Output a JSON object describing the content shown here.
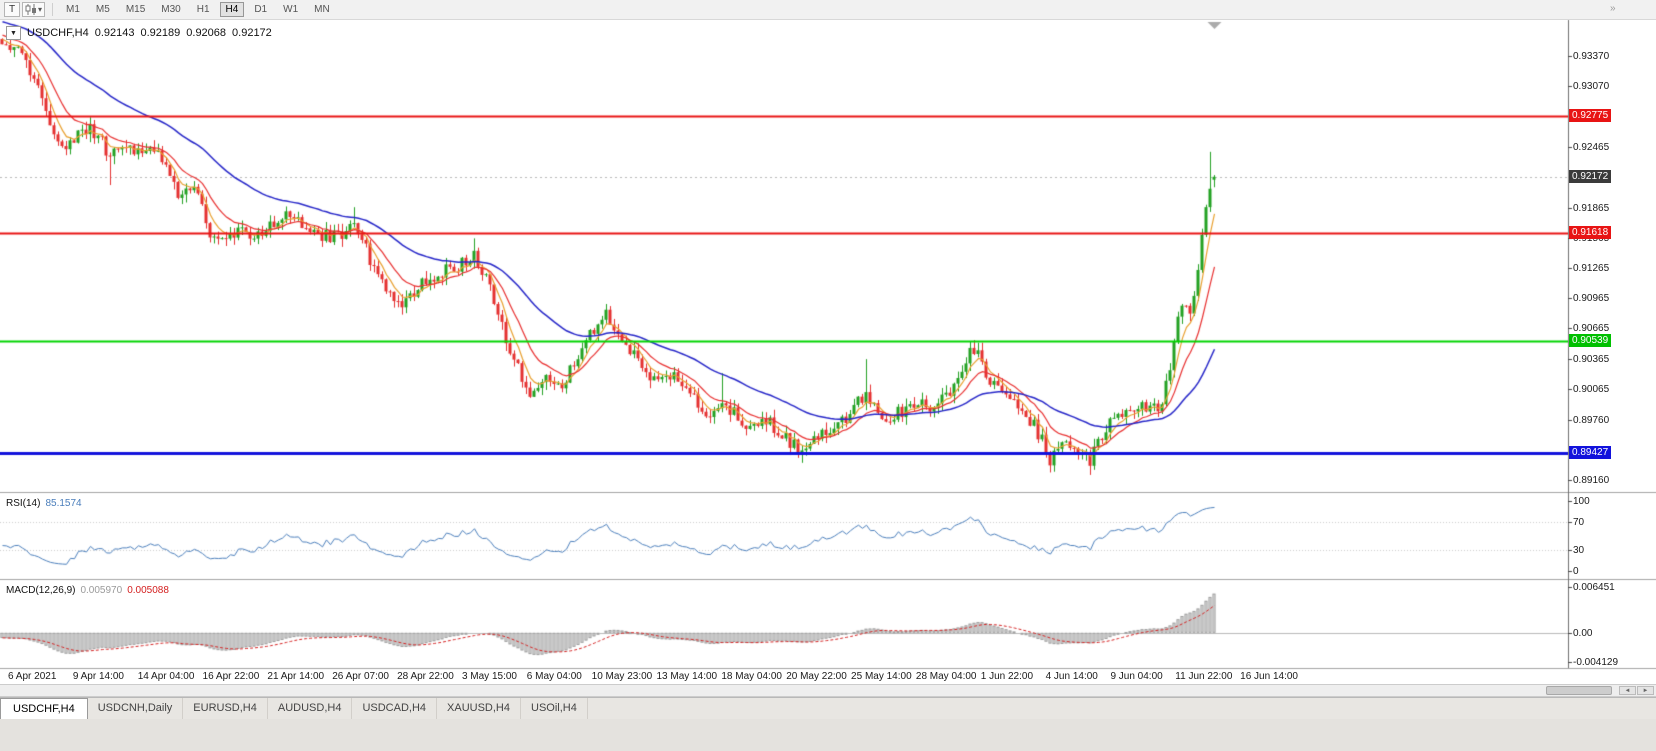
{
  "toolbar": {
    "templates_label": "T",
    "dropdown_caret": "▾",
    "overflow_icon": "»",
    "timeframes": [
      "M1",
      "M5",
      "M15",
      "M30",
      "H1",
      "H4",
      "D1",
      "W1",
      "MN"
    ],
    "active_timeframe": "H4"
  },
  "header": {
    "dropdown_glyph": "▼",
    "symbol": "USDCHF,H4",
    "open": "0.92143",
    "high": "0.92189",
    "low": "0.92068",
    "close": "0.92172"
  },
  "chart_data": {
    "type": "candlestick",
    "symbol": "USDCHF",
    "timeframe": "H4",
    "price_axis": {
      "max": 0.9373,
      "min": 0.8904,
      "ticks": [
        "0.93370",
        "0.93070",
        "0.92465",
        "0.91865",
        "0.91565",
        "0.91265",
        "0.90965",
        "0.90665",
        "0.90365",
        "0.90065",
        "0.89760",
        "0.89160"
      ],
      "badges": [
        {
          "text": "0.92775",
          "bg": "#e81414"
        },
        {
          "text": "0.92172",
          "bg": "#3b3b3b"
        },
        {
          "text": "0.91618",
          "bg": "#e81414"
        },
        {
          "text": "0.90539",
          "bg": "#00c000"
        },
        {
          "text": "0.89427",
          "bg": "#1212dc"
        }
      ]
    },
    "current_price": 0.92172,
    "h_lines": [
      {
        "price": 0.92775,
        "color": "#e81414",
        "width": 2
      },
      {
        "price": 0.91618,
        "color": "#e81414",
        "width": 2
      },
      {
        "price": 0.90539,
        "color": "#00d400",
        "width": 2
      },
      {
        "price": 0.89427,
        "color": "#1212dc",
        "width": 3
      }
    ],
    "candles": {
      "count": 304,
      "spacing": 4,
      "seed": 20210616,
      "noise": 0.0007,
      "wick": 0.0008,
      "up_color": "#23a123",
      "down_color": "#e53030",
      "warmup": {
        "count": 45,
        "start_price": 0.9402
      },
      "last": {
        "open": 0.92143,
        "high": 0.92189,
        "low": 0.92068,
        "close": 0.92172
      },
      "anchors": [
        [
          0,
          0.9352
        ],
        [
          4,
          0.9341
        ],
        [
          8,
          0.9315
        ],
        [
          12,
          0.9271
        ],
        [
          16,
          0.9247
        ],
        [
          20,
          0.9268
        ],
        [
          24,
          0.9258
        ],
        [
          27,
          0.9237
        ],
        [
          30,
          0.9252
        ],
        [
          34,
          0.9244
        ],
        [
          38,
          0.9245
        ],
        [
          42,
          0.9222
        ],
        [
          45,
          0.9193
        ],
        [
          48,
          0.921
        ],
        [
          52,
          0.9163
        ],
        [
          56,
          0.9151
        ],
        [
          60,
          0.9165
        ],
        [
          64,
          0.9157
        ],
        [
          68,
          0.917
        ],
        [
          72,
          0.918
        ],
        [
          76,
          0.9165
        ],
        [
          80,
          0.916
        ],
        [
          84,
          0.9156
        ],
        [
          88,
          0.9174
        ],
        [
          92,
          0.9136
        ],
        [
          96,
          0.9107
        ],
        [
          100,
          0.9087
        ],
        [
          104,
          0.911
        ],
        [
          108,
          0.912
        ],
        [
          112,
          0.9126
        ],
        [
          116,
          0.9131
        ],
        [
          118,
          0.9138
        ],
        [
          122,
          0.9106
        ],
        [
          124,
          0.9077
        ],
        [
          128,
          0.9037
        ],
        [
          132,
          0.8999
        ],
        [
          136,
          0.9022
        ],
        [
          140,
          0.9009
        ],
        [
          144,
          0.9038
        ],
        [
          148,
          0.9068
        ],
        [
          150,
          0.9081
        ],
        [
          152,
          0.9076
        ],
        [
          156,
          0.9051
        ],
        [
          160,
          0.9027
        ],
        [
          164,
          0.9011
        ],
        [
          168,
          0.9026
        ],
        [
          172,
          0.9001
        ],
        [
          176,
          0.8977
        ],
        [
          180,
          0.8997
        ],
        [
          184,
          0.8977
        ],
        [
          188,
          0.8967
        ],
        [
          192,
          0.8973
        ],
        [
          196,
          0.8957
        ],
        [
          200,
          0.8942
        ],
        [
          204,
          0.8957
        ],
        [
          208,
          0.8972
        ],
        [
          212,
          0.8982
        ],
        [
          216,
          0.9002
        ],
        [
          220,
          0.8977
        ],
        [
          224,
          0.8983
        ],
        [
          228,
          0.8992
        ],
        [
          232,
          0.8987
        ],
        [
          236,
          0.8997
        ],
        [
          240,
          0.9022
        ],
        [
          242,
          0.9043
        ],
        [
          244,
          0.9038
        ],
        [
          248,
          0.9008
        ],
        [
          252,
          0.8992
        ],
        [
          256,
          0.8982
        ],
        [
          260,
          0.8957
        ],
        [
          262,
          0.8937
        ],
        [
          264,
          0.8952
        ],
        [
          268,
          0.8947
        ],
        [
          272,
          0.8937
        ],
        [
          276,
          0.8967
        ],
        [
          280,
          0.8982
        ],
        [
          284,
          0.8989
        ],
        [
          288,
          0.8989
        ],
        [
          290,
          0.8993
        ],
        [
          292,
          0.903
        ],
        [
          294,
          0.9075
        ],
        [
          296,
          0.9093
        ],
        [
          297,
          0.9083
        ],
        [
          298,
          0.9104
        ],
        [
          299,
          0.9129
        ],
        [
          300,
          0.9153
        ],
        [
          301,
          0.9181
        ],
        [
          302,
          0.9209
        ],
        [
          303,
          0.92172
        ]
      ],
      "spikes": {
        "16": {
          "low": 0.924
        },
        "27": {
          "low": 0.9209
        },
        "88": {
          "high": 0.9187
        },
        "118": {
          "high": 0.9156
        },
        "180": {
          "high": 0.9022
        },
        "200": {
          "low": 0.8933
        },
        "216": {
          "high": 0.9036
        },
        "242": {
          "high": 0.9054
        },
        "262": {
          "low": 0.8926
        },
        "272": {
          "low": 0.8921
        },
        "302": {
          "high": 0.9242
        }
      }
    },
    "moving_averages": [
      {
        "type": "ema",
        "period": 5,
        "color": "#e8a030",
        "width": 1.2
      },
      {
        "type": "ema",
        "period": 12,
        "color": "#e83030",
        "width": 1.2
      },
      {
        "type": "ema",
        "period": 40,
        "color": "#2626c8",
        "width": 1.5
      }
    ],
    "rsi": {
      "name": "RSI(14)",
      "value": "85.1574",
      "period": 14,
      "color": "#4a7ebb",
      "levels": [
        70,
        30
      ],
      "axis_labels": [
        "100",
        "70",
        "30",
        "0"
      ]
    },
    "macd": {
      "name": "MACD(12,26,9)",
      "main_value": "0.005970",
      "signal_value": "0.005088",
      "fast": 12,
      "slow": 26,
      "signal": 9,
      "range": [
        -0.005,
        0.0075
      ],
      "axis_labels": [
        {
          "v": 0.006451,
          "label": "0.006451"
        },
        {
          "v": 0,
          "label": "0.00"
        },
        {
          "v": -0.004129,
          "label": "-0.004129"
        }
      ],
      "histogram_fill": "#e6e6e6",
      "histogram_stroke": "#9f9f9f",
      "signal_color": "#d42020"
    },
    "x_axis": {
      "labels": [
        "6 Apr 2021",
        "9 Apr 14:00",
        "14 Apr 04:00",
        "16 Apr 22:00",
        "21 Apr 14:00",
        "26 Apr 07:00",
        "28 Apr 22:00",
        "3 May 15:00",
        "6 May 04:00",
        "10 May 23:00",
        "13 May 14:00",
        "18 May 04:00",
        "20 May 22:00",
        "25 May 14:00",
        "28 May 04:00",
        "1 Jun 22:00",
        "4 Jun 14:00",
        "9 Jun 04:00",
        "11 Jun 22:00",
        "16 Jun 14:00"
      ]
    }
  },
  "tabs": [
    {
      "label": "USDCHF,H4",
      "active": true
    },
    {
      "label": "USDCNH,Daily",
      "active": false
    },
    {
      "label": "EURUSD,H4",
      "active": false
    },
    {
      "label": "AUDUSD,H4",
      "active": false
    },
    {
      "label": "USDCAD,H4",
      "active": false
    },
    {
      "label": "XAUUSD,H4",
      "active": false
    },
    {
      "label": "USOil,H4",
      "active": false
    }
  ],
  "scrollbar": {
    "left_arrow": "◄",
    "right_arrow": "►"
  }
}
